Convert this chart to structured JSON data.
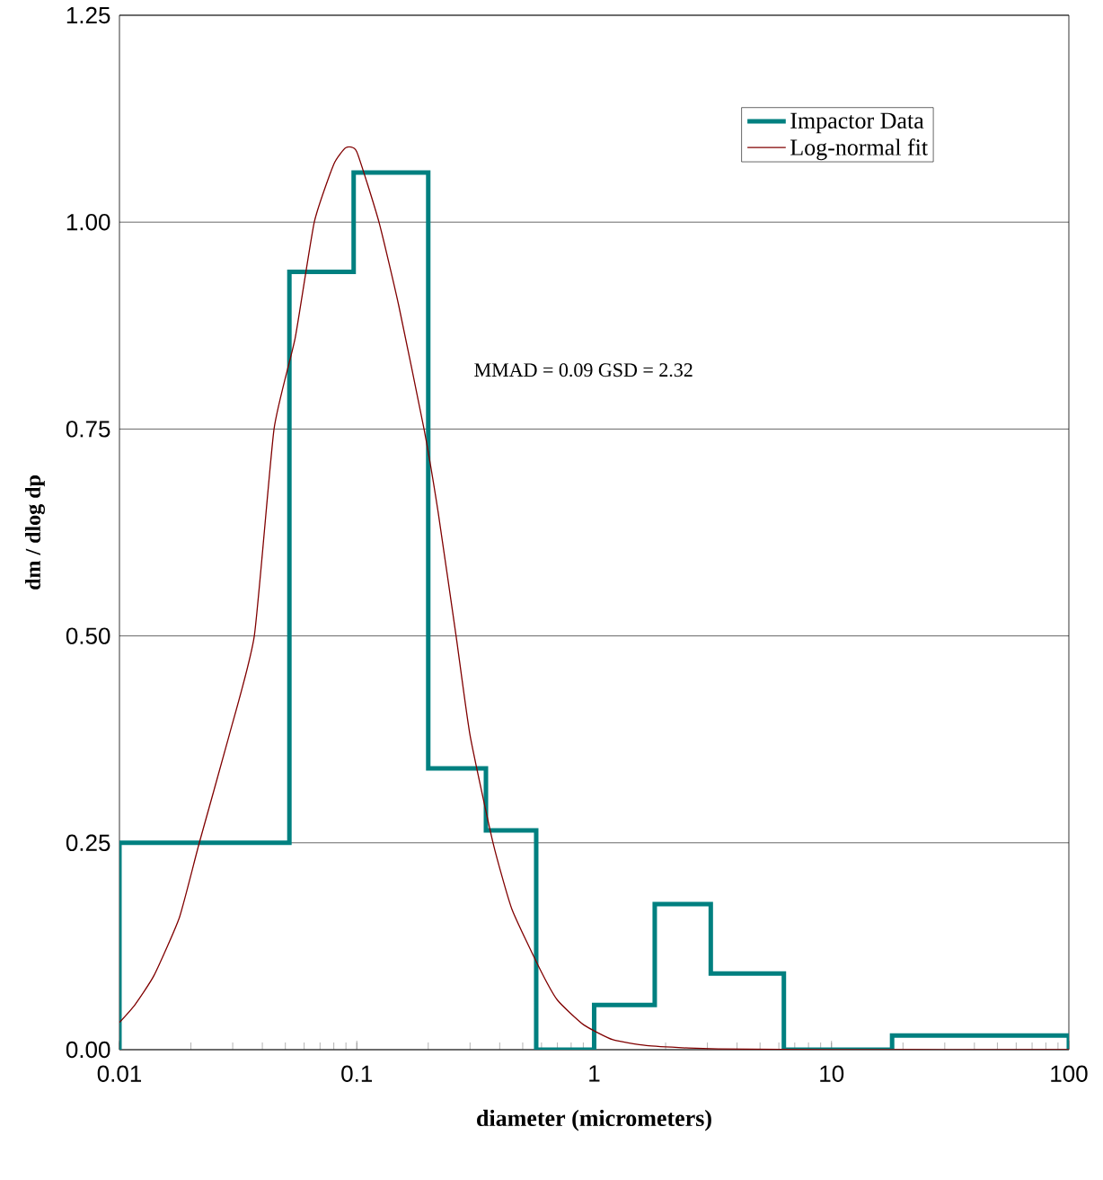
{
  "chart_data": {
    "type": "histogram",
    "xlabel": "diameter (micrometers)",
    "ylabel": "dm / dlog dp",
    "annotations": [
      "MMAD = 0.09   GSD = 2.32"
    ],
    "series": [
      {
        "name": "Impactor Data",
        "color": "#008080",
        "bins": [
          0.01,
          0.052,
          0.097,
          0.2,
          0.35,
          0.57,
          1.0,
          1.8,
          3.1,
          6.3,
          18,
          100
        ],
        "values": [
          0.25,
          0.94,
          1.06,
          0.34,
          0.265,
          0,
          0.054,
          0.176,
          0.092,
          0,
          0.017
        ]
      },
      {
        "type": "line",
        "name": "Log-normal fit",
        "color": "#800000",
        "x": [
          0.01,
          0.0116,
          0.014,
          0.0179,
          0.0217,
          0.029,
          0.037,
          0.0448,
          0.055,
          0.0662,
          0.08,
          0.09,
          0.1,
          0.124,
          0.15,
          0.192,
          0.22,
          0.262,
          0.3,
          0.375,
          0.45,
          0.585,
          0.7,
          0.904,
          1.2,
          1.66,
          2.5,
          3.34,
          10,
          100
        ],
        "values": [
          0.033,
          0.054,
          0.09,
          0.16,
          0.25,
          0.38,
          0.5,
          0.75,
          0.86,
          1.0,
          1.07,
          1.09,
          1.085,
          1.0,
          0.9,
          0.75,
          0.65,
          0.5,
          0.38,
          0.25,
          0.17,
          0.1,
          0.06,
          0.03,
          0.012,
          0.005,
          0.002,
          0.001,
          0,
          0
        ]
      }
    ],
    "log": "x",
    "xlim": [
      0.01,
      100
    ],
    "xticks": [
      0.01,
      0.1,
      1,
      10,
      100
    ],
    "ylim": [
      0,
      1.25
    ],
    "yticks": [
      {
        "value": 0,
        "label": "0.00"
      },
      {
        "value": 0.25,
        "label": "0.25"
      },
      {
        "value": 0.5,
        "label": "0.50"
      },
      {
        "value": 0.75,
        "label": "0.75"
      },
      {
        "value": 1,
        "label": "1.00"
      },
      {
        "value": 1.25,
        "label": "1.25"
      }
    ],
    "grid": "y",
    "legend": "top right"
  }
}
